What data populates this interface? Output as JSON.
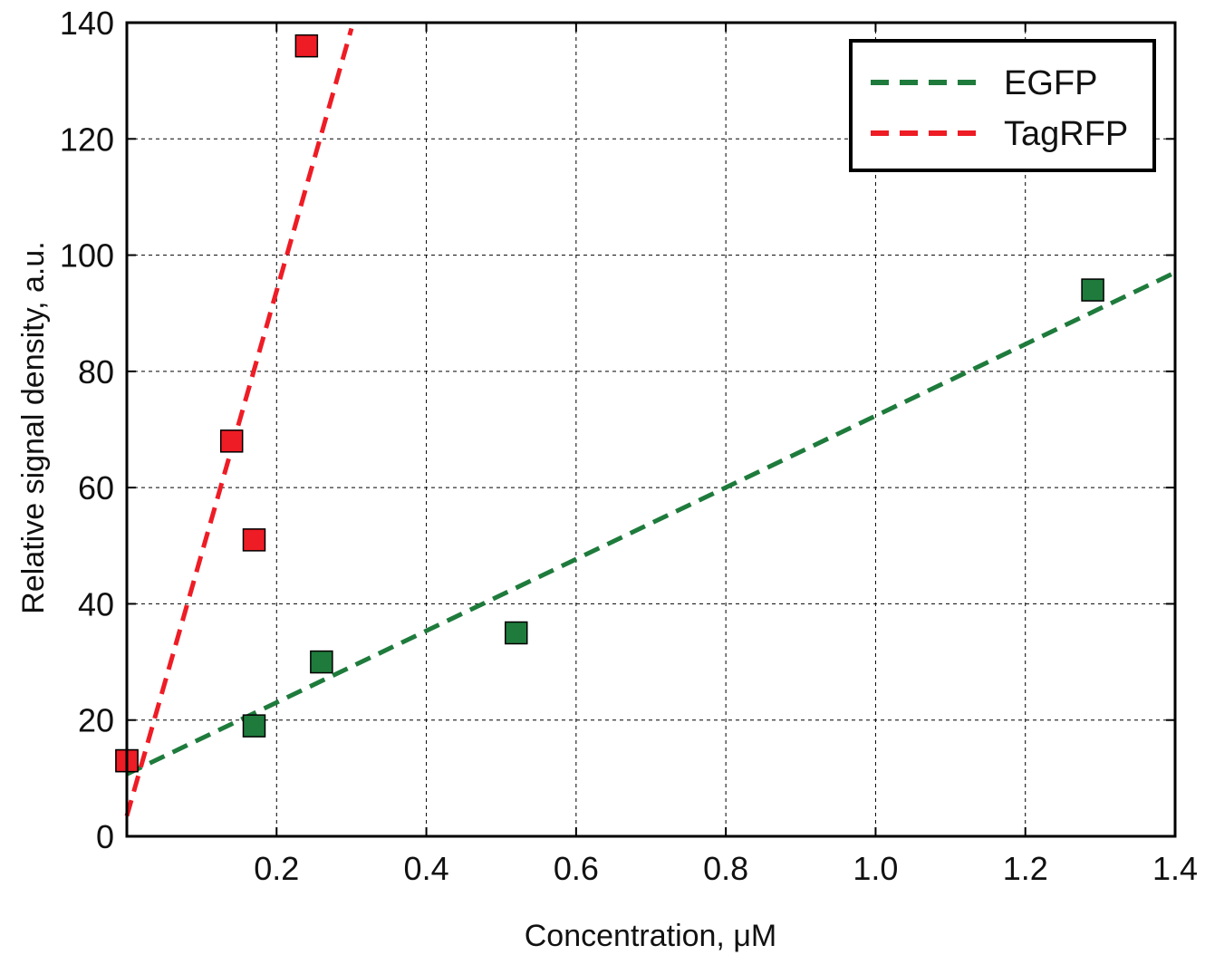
{
  "chart_data": {
    "type": "scatter",
    "title": "",
    "xlabel": "Concentration, μM",
    "ylabel": "Relative signal density, a.u.",
    "xlim": [
      0,
      1.4
    ],
    "ylim": [
      0,
      140
    ],
    "x_ticks": [
      0.2,
      0.4,
      0.6,
      0.8,
      1.0,
      1.2,
      1.4
    ],
    "x_tick_labels": [
      "0.2",
      "0.4",
      "0.6",
      "0.8",
      "1.0",
      "1.2",
      "1.4"
    ],
    "y_ticks": [
      0,
      20,
      40,
      60,
      80,
      100,
      120,
      140
    ],
    "y_tick_labels": [
      "0",
      "20",
      "40",
      "60",
      "80",
      "100",
      "120",
      "140"
    ],
    "grid": true,
    "legend_position": "top-right",
    "series": [
      {
        "name": "EGFP",
        "color": "#1e7b3c",
        "marker": "square",
        "points": [
          [
            0.0,
            13
          ],
          [
            0.17,
            19
          ],
          [
            0.26,
            30
          ],
          [
            0.52,
            35
          ],
          [
            1.29,
            94
          ]
        ],
        "trendline": {
          "style": "dashed",
          "x": [
            0.0,
            1.4
          ],
          "y": [
            10.7,
            97
          ]
        }
      },
      {
        "name": "TagRFP",
        "color": "#ee1c25",
        "marker": "square",
        "points": [
          [
            0.0,
            13
          ],
          [
            0.14,
            68
          ],
          [
            0.17,
            51
          ],
          [
            0.24,
            136
          ]
        ],
        "trendline": {
          "style": "dashed",
          "x": [
            0.0,
            0.3
          ],
          "y": [
            3.5,
            139
          ]
        }
      }
    ]
  }
}
